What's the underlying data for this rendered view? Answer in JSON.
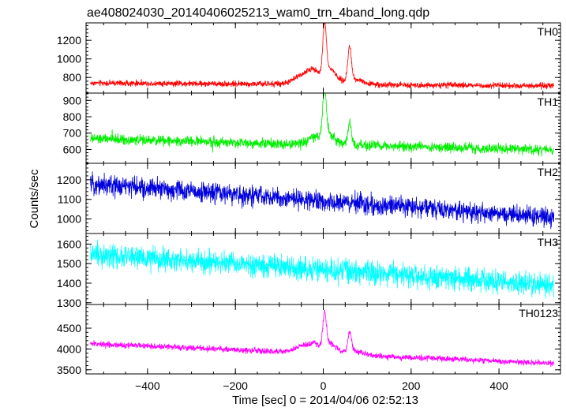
{
  "chart_data": {
    "type": "line",
    "title": "ae408024030_20140406025213_wam0_trn_4band_long.qdp",
    "xlabel": "Time [sec] 0 = 2014/04/06 02:52:13",
    "ylabel": "Counts/sec",
    "xlim": [
      -540,
      540
    ],
    "x_ticks": [
      -400,
      -200,
      0,
      200,
      400
    ],
    "x_tick_labels": [
      "−400",
      "−200",
      "0",
      "200",
      "400"
    ],
    "grid": false,
    "panels": [
      {
        "name": "TH0",
        "color": "#ff0000",
        "ylim": [
          640,
          1380
        ],
        "y_ticks": [
          800,
          1000,
          1200
        ],
        "baseline_start": 740,
        "baseline_end": 710,
        "noise": 22,
        "features": [
          {
            "t": -40,
            "height": 120,
            "width": 22
          },
          {
            "t": -20,
            "height": 80,
            "width": 10
          },
          {
            "t": 3,
            "height": 550,
            "width": 4
          },
          {
            "t": 15,
            "height": 160,
            "width": 14
          },
          {
            "t": 60,
            "height": 360,
            "width": 4
          },
          {
            "t": 70,
            "height": 60,
            "width": 20
          }
        ]
      },
      {
        "name": "TH1",
        "color": "#00ee00",
        "ylim": [
          520,
          940
        ],
        "y_ticks": [
          600,
          700,
          800,
          900
        ],
        "baseline_start": 665,
        "baseline_end": 595,
        "noise": 22,
        "features": [
          {
            "t": -15,
            "height": 45,
            "width": 16
          },
          {
            "t": 3,
            "height": 280,
            "width": 4
          },
          {
            "t": 15,
            "height": 60,
            "width": 14
          },
          {
            "t": 60,
            "height": 130,
            "width": 4
          }
        ]
      },
      {
        "name": "TH2",
        "color": "#0000dd",
        "ylim": [
          930,
          1280
        ],
        "y_ticks": [
          1000,
          1100,
          1200
        ],
        "baseline_start": 1180,
        "baseline_end": 1005,
        "noise": 36,
        "features": []
      },
      {
        "name": "TH3",
        "color": "#00ffff",
        "ylim": [
          1295,
          1650
        ],
        "y_ticks": [
          1300,
          1400,
          1500,
          1600
        ],
        "baseline_start": 1545,
        "baseline_end": 1390,
        "noise": 42,
        "features": []
      },
      {
        "name": "TH0123",
        "color": "#ff00ff",
        "ylim": [
          3420,
          5050
        ],
        "y_ticks": [
          3500,
          4000,
          4500
        ],
        "baseline_start": 4130,
        "baseline_end": 3650,
        "noise": 50,
        "features": [
          {
            "t": -40,
            "height": 180,
            "width": 22
          },
          {
            "t": -20,
            "height": 120,
            "width": 10
          },
          {
            "t": 3,
            "height": 800,
            "width": 4
          },
          {
            "t": 15,
            "height": 250,
            "width": 14
          },
          {
            "t": 60,
            "height": 480,
            "width": 4
          },
          {
            "t": 70,
            "height": 90,
            "width": 20
          }
        ]
      }
    ]
  }
}
